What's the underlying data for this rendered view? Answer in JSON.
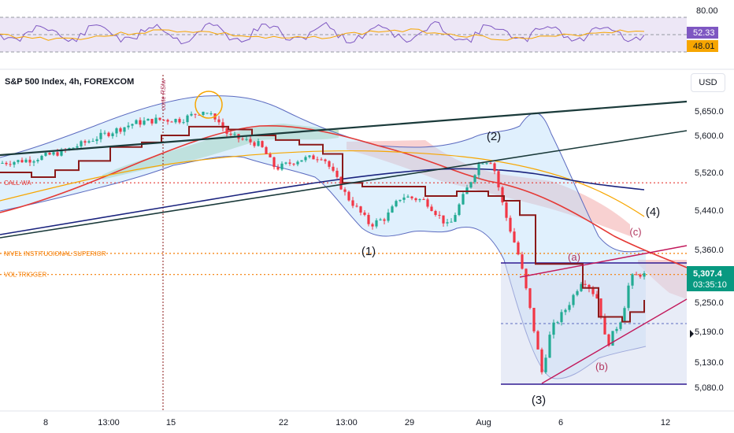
{
  "title": "S&P 500 Index, 4h, FOREXCOM",
  "currency_button": "USD",
  "vertical_note": "corte RSIw",
  "price_badges": {
    "price": "5,307.4",
    "countdown": "03:35:10"
  },
  "rsi_panel": {
    "ticks": [
      "80.00"
    ],
    "badges": {
      "rsi": "52.33",
      "ma": "48.01"
    }
  },
  "chart_data": {
    "type": "candlestick",
    "title": "S&P 500 Index, 4h, FOREXCOM",
    "y_ticks": [
      5650,
      5600,
      5520,
      5440,
      5360,
      5250,
      5190,
      5130,
      5080
    ],
    "y_tick_labels": [
      "5,650.0",
      "5,600.0",
      "5,520.0",
      "5,440.0",
      "5,360.0",
      "5,250.0",
      "5,190.0",
      "5,130.0",
      "5,080.0"
    ],
    "x_tick_labels": [
      "8",
      "13:00",
      "15",
      "22",
      "13:00",
      "29",
      "Aug",
      "6",
      "12"
    ],
    "last_price": 5307.4,
    "wave_labels": [
      "(1)",
      "(2)",
      "(3)",
      "(4)",
      "(a)",
      "(b)",
      "(c)"
    ],
    "levels": [
      {
        "name": "CALL WALL",
        "label": "CALL WA",
        "price": 5498,
        "color": "#e53935"
      },
      {
        "name": "NIVEL INSTITUCIONAL SUPERIOR",
        "label": "NIVEL INSTITUCIONAL SUPERIOR",
        "price": 5352,
        "color": "#f57c00"
      },
      {
        "name": "VOL TRIGGER",
        "label": "VOL TRIGGER",
        "price": 5308,
        "color": "#f57c00"
      }
    ],
    "colors": {
      "up": "#22ab94",
      "down": "#f23645",
      "trend": "#1a3a3a",
      "stair": "#8b1a1a"
    }
  }
}
